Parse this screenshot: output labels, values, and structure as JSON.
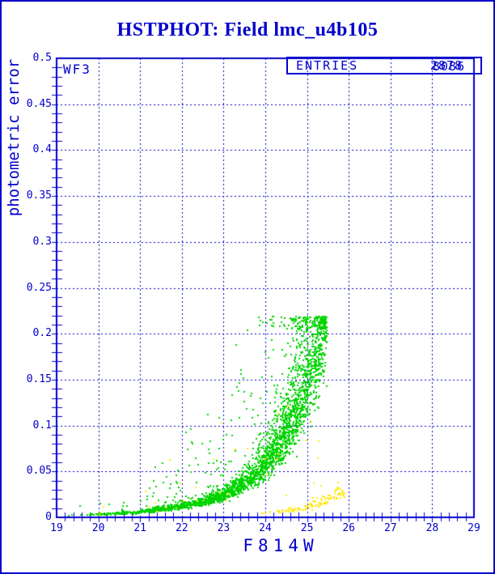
{
  "page": {
    "background": "#ffffff",
    "border_color": "#0000cc"
  },
  "title": {
    "text": "HSTPHOT: Field lmc_u4b105"
  },
  "annotations": {
    "chip_label": "WF3",
    "entries_label": "ENTRIES",
    "entries_value_front": "2878",
    "entries_value_back": "8086"
  },
  "colors": {
    "ink": "#0000cc",
    "green": "#00d400",
    "yellow": "#ffe800"
  },
  "chart_data": {
    "type": "scatter",
    "title": "HSTPHOT: Field lmc_u4b105",
    "xlabel": "F814W",
    "ylabel": "photometric error",
    "xlim": [
      19,
      29
    ],
    "ylim": [
      0,
      0.5
    ],
    "x_tick_labels": [
      "19",
      "20",
      "21",
      "22",
      "23",
      "24",
      "25",
      "26",
      "27",
      "28",
      "29"
    ],
    "y_tick_labels": [
      "0",
      "0.05",
      "0.1",
      "0.15",
      "0.2",
      "0.25",
      "0.3",
      "0.35",
      "0.4",
      "0.45",
      "0.5"
    ],
    "x_minor_step": 0.2,
    "y_minor_step": 0.01,
    "grid": "dashed at major ticks, both axes",
    "legend": "none",
    "series": [
      {
        "name": "wf3-photometric-error-sequence",
        "color": "#00d400",
        "marker": "2px-square",
        "n_points": 2600,
        "mag_range": [
          19.2,
          25.48
        ],
        "mean_curve": [
          [
            19.2,
            0.0022
          ],
          [
            20,
            0.0032
          ],
          [
            21,
            0.0058
          ],
          [
            22,
            0.012
          ],
          [
            22.5,
            0.017
          ],
          [
            23,
            0.025
          ],
          [
            23.5,
            0.038
          ],
          [
            24,
            0.057
          ],
          [
            24.4,
            0.082
          ],
          [
            24.8,
            0.118
          ],
          [
            25.1,
            0.158
          ],
          [
            25.3,
            0.195
          ],
          [
            25.48,
            0.222
          ]
        ],
        "error_cap_range": [
          0.205,
          0.219
        ],
        "scatter_dex": 0.07,
        "halo_fraction": 0.1,
        "halo_extra_dex": [
          0.12,
          0.77
        ],
        "secondary_band": {
          "n_points": 200,
          "mag_shift": 0.45,
          "mag_range": [
            23.3,
            25.02
          ],
          "scatter_dex": 0.055
        }
      },
      {
        "name": "low-error-yellow-sequence",
        "color": "#ffe800",
        "marker": "2px-square",
        "n_points": 110,
        "mag_range": [
          23.85,
          25.92
        ],
        "mean_curve": [
          [
            23.85,
            0.004
          ],
          [
            24.4,
            0.006
          ],
          [
            24.9,
            0.01
          ],
          [
            25.3,
            0.016
          ],
          [
            25.6,
            0.022
          ],
          [
            25.92,
            0.03
          ]
        ],
        "scatter_dex": 0.08,
        "outliers": {
          "n_points": 34,
          "mag_range": [
            19.6,
            25.5
          ],
          "rel_dex_range": [
            -0.25,
            0.8
          ],
          "error_max": 0.125
        }
      }
    ]
  }
}
